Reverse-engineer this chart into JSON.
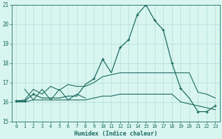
{
  "xlabel": "Humidex (Indice chaleur)",
  "bg_color": "#d9f5f0",
  "grid_color": "#b0ddd8",
  "line_color": "#1a6b60",
  "xlim": [
    -0.5,
    23.5
  ],
  "ylim": [
    15,
    21
  ],
  "yticks": [
    15,
    16,
    17,
    18,
    19,
    20,
    21
  ],
  "xticks": [
    0,
    1,
    2,
    3,
    4,
    5,
    6,
    7,
    8,
    9,
    10,
    11,
    12,
    13,
    14,
    15,
    16,
    17,
    18,
    19,
    20,
    21,
    22,
    23
  ],
  "series_main": [
    16.05,
    16.05,
    16.4,
    16.2,
    16.2,
    16.2,
    16.3,
    16.3,
    16.9,
    17.2,
    18.2,
    17.5,
    18.8,
    19.2,
    20.5,
    21.0,
    20.2,
    19.7,
    18.0,
    16.7,
    16.2,
    15.5,
    15.5,
    15.8
  ],
  "series_upper": [
    16.05,
    16.1,
    16.65,
    16.4,
    16.8,
    16.6,
    16.9,
    16.8,
    16.8,
    17.0,
    17.3,
    17.4,
    17.5,
    17.5,
    17.5,
    17.5,
    17.5,
    17.5,
    17.5,
    17.5,
    17.5,
    16.5,
    16.4,
    16.2
  ],
  "series_lower": [
    16.0,
    16.0,
    16.1,
    16.1,
    16.1,
    16.1,
    16.1,
    16.1,
    16.1,
    16.2,
    16.3,
    16.3,
    16.4,
    16.4,
    16.4,
    16.4,
    16.4,
    16.4,
    16.4,
    16.0,
    15.9,
    15.8,
    15.7,
    15.6
  ],
  "zigzag_x": [
    1,
    2,
    3,
    4,
    5,
    6,
    7,
    8
  ],
  "zigzag_y": [
    16.65,
    16.1,
    16.65,
    16.1,
    16.65,
    16.1,
    16.4,
    16.2
  ],
  "markers_x": [
    0,
    1,
    2,
    9,
    10,
    12,
    13,
    14,
    15,
    16,
    17,
    18,
    19,
    21,
    22,
    23
  ],
  "markers_y": [
    16.05,
    16.05,
    16.4,
    17.2,
    18.2,
    18.8,
    19.2,
    20.5,
    21.0,
    20.2,
    19.7,
    18.0,
    16.7,
    15.5,
    15.5,
    15.8
  ]
}
